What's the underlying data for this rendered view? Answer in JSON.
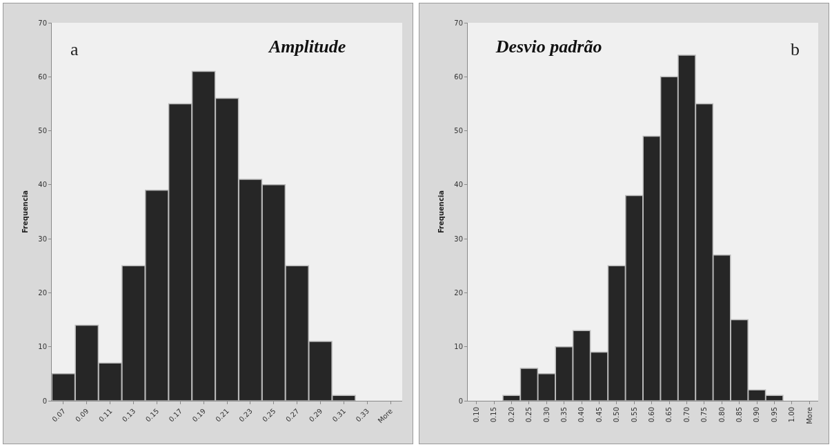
{
  "chart_data": [
    {
      "type": "bar",
      "title": "Amplitude",
      "ylabel": "Frequencia",
      "annotations": [
        "a"
      ],
      "categories": [
        "0.07",
        "0.09",
        "0.11",
        "0.13",
        "0.15",
        "0.17",
        "0.19",
        "0.21",
        "0.23",
        "0.25",
        "0.27",
        "0.29",
        "0.31",
        "0.33",
        "More"
      ],
      "values": [
        5,
        14,
        7,
        25,
        39,
        55,
        61,
        56,
        41,
        40,
        25,
        11,
        1,
        0,
        0
      ],
      "color": "#262626",
      "ylim": [
        0,
        70
      ],
      "yticks": [
        0,
        10,
        20,
        30,
        40,
        50,
        60,
        70
      ],
      "grid": false,
      "legend": false
    },
    {
      "type": "bar",
      "title": "Desvio padrão",
      "ylabel": "Frequencia",
      "annotations": [
        "b"
      ],
      "categories": [
        "0.10",
        "0.15",
        "0.20",
        "0.25",
        "0.30",
        "0.35",
        "0.40",
        "0.45",
        "0.50",
        "0.55",
        "0.60",
        "0.65",
        "0.70",
        "0.75",
        "0.80",
        "0.85",
        "0.90",
        "0.95",
        "1.00",
        "More"
      ],
      "values": [
        0,
        0,
        1,
        6,
        5,
        10,
        13,
        9,
        25,
        38,
        49,
        60,
        64,
        55,
        27,
        15,
        2,
        1,
        0,
        0
      ],
      "color": "#262626",
      "ylim": [
        0,
        70
      ],
      "yticks": [
        0,
        10,
        20,
        30,
        40,
        50,
        60,
        70
      ],
      "grid": false,
      "legend": false
    }
  ]
}
